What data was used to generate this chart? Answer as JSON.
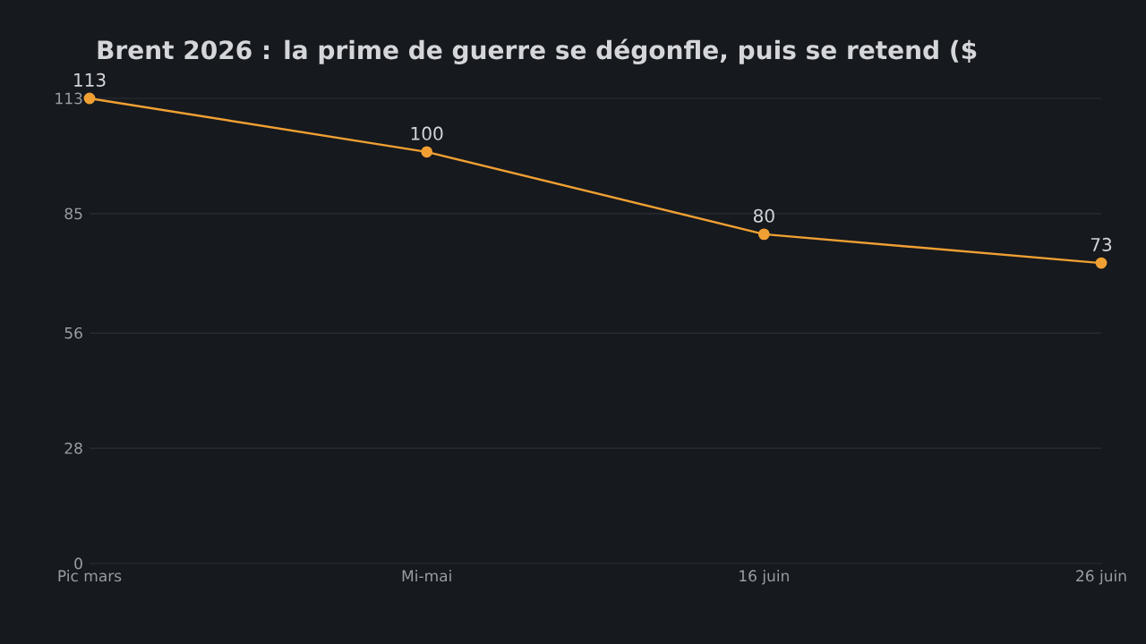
{
  "chart_data": {
    "type": "line",
    "title": "Brent 2026 : la prime de guerre se dégonfle, puis se retend ($",
    "categories": [
      "Pic mars",
      "Mi-mai",
      "16 juin",
      "26 juin"
    ],
    "series": [
      {
        "color": "#f0a033",
        "values": [
          113,
          100,
          80,
          73
        ]
      }
    ],
    "ylim": [
      0,
      113
    ],
    "yticks": [
      0,
      28,
      56,
      85,
      113
    ],
    "grid": "y",
    "marker": "circle",
    "data_labels": true
  }
}
